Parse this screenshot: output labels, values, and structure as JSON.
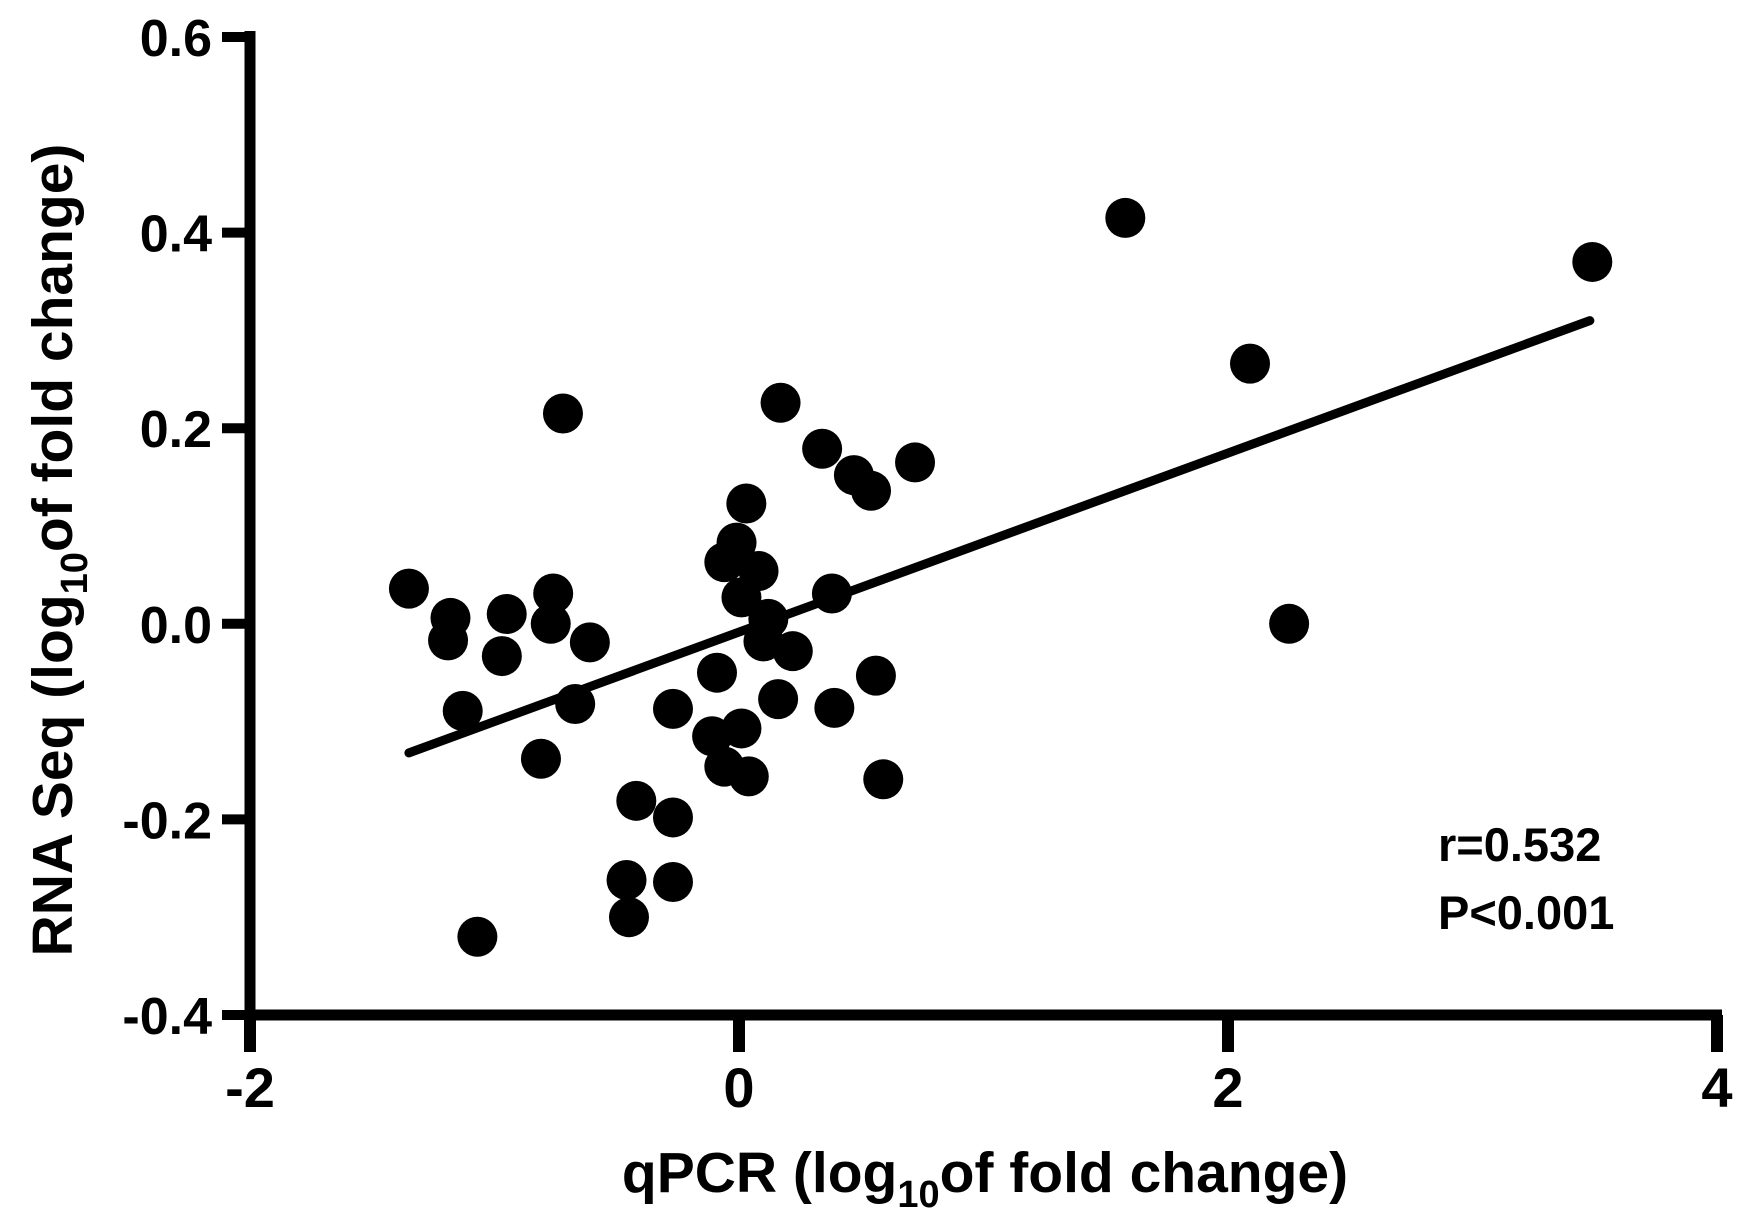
{
  "chart_data": {
    "type": "scatter",
    "title": "",
    "xlabel": "qPCR (log10 of fold change)",
    "ylabel": "RNA Seq (log10 of fold change)",
    "xlabel_parts": {
      "prefix": "qPCR (log",
      "sub": "10",
      "suffix": "of fold change)"
    },
    "ylabel_parts": {
      "prefix": "RNA Seq (log",
      "sub": "10",
      "suffix": "of fold change)"
    },
    "xlim": [
      -2,
      4
    ],
    "ylim": [
      -0.4,
      0.6
    ],
    "grid": false,
    "legend": "none",
    "marker_color": "#000000",
    "line_color": "#000000",
    "background_color": "#ffffff",
    "x_ticks": [
      {
        "value": -2,
        "label": "-2"
      },
      {
        "value": 0,
        "label": "0"
      },
      {
        "value": 2,
        "label": "2"
      },
      {
        "value": 4,
        "label": "4"
      }
    ],
    "y_ticks": [
      {
        "value": 0.6,
        "label": "0.6"
      },
      {
        "value": 0.4,
        "label": "0.4"
      },
      {
        "value": 0.2,
        "label": "0.2"
      },
      {
        "value": 0.0,
        "label": "0.0"
      },
      {
        "value": -0.2,
        "label": "-0.2"
      },
      {
        "value": -0.4,
        "label": "-0.4"
      }
    ],
    "points": [
      [
        -1.35,
        0.036
      ],
      [
        -1.18,
        0.006
      ],
      [
        -1.19,
        -0.017
      ],
      [
        -0.95,
        0.01
      ],
      [
        -0.97,
        -0.033
      ],
      [
        -0.76,
        0.031
      ],
      [
        -0.77,
        0.0
      ],
      [
        -0.61,
        -0.019
      ],
      [
        -1.13,
        -0.089
      ],
      [
        -0.67,
        -0.082
      ],
      [
        -0.81,
        -0.138
      ],
      [
        -1.07,
        -0.32
      ],
      [
        -0.72,
        0.215
      ],
      [
        -0.42,
        -0.181
      ],
      [
        -0.27,
        -0.198
      ],
      [
        -0.46,
        -0.262
      ],
      [
        -0.27,
        -0.264
      ],
      [
        -0.45,
        -0.3
      ],
      [
        -0.27,
        -0.087
      ],
      [
        -0.11,
        -0.115
      ],
      [
        -0.06,
        -0.146
      ],
      [
        0.04,
        -0.156
      ],
      [
        -0.09,
        -0.05
      ],
      [
        0.03,
        0.123
      ],
      [
        -0.01,
        0.083
      ],
      [
        -0.06,
        0.063
      ],
      [
        0.08,
        0.054
      ],
      [
        0.01,
        0.027
      ],
      [
        0.12,
        0.005
      ],
      [
        0.1,
        -0.018
      ],
      [
        0.01,
        -0.107
      ],
      [
        0.16,
        -0.077
      ],
      [
        0.22,
        -0.028
      ],
      [
        0.17,
        0.226
      ],
      [
        0.34,
        0.179
      ],
      [
        0.47,
        0.152
      ],
      [
        0.54,
        0.136
      ],
      [
        0.72,
        0.165
      ],
      [
        0.38,
        0.031
      ],
      [
        0.56,
        -0.053
      ],
      [
        0.39,
        -0.086
      ],
      [
        0.59,
        -0.159
      ],
      [
        1.58,
        0.415
      ],
      [
        2.09,
        0.266
      ],
      [
        2.25,
        0.0
      ],
      [
        3.49,
        0.37
      ]
    ],
    "trend_line": {
      "x1": -1.35,
      "y1": -0.132,
      "x2": 3.48,
      "y2": 0.31
    },
    "annotation": {
      "r_label": "r=0.532",
      "p_label": "P<0.001"
    }
  }
}
